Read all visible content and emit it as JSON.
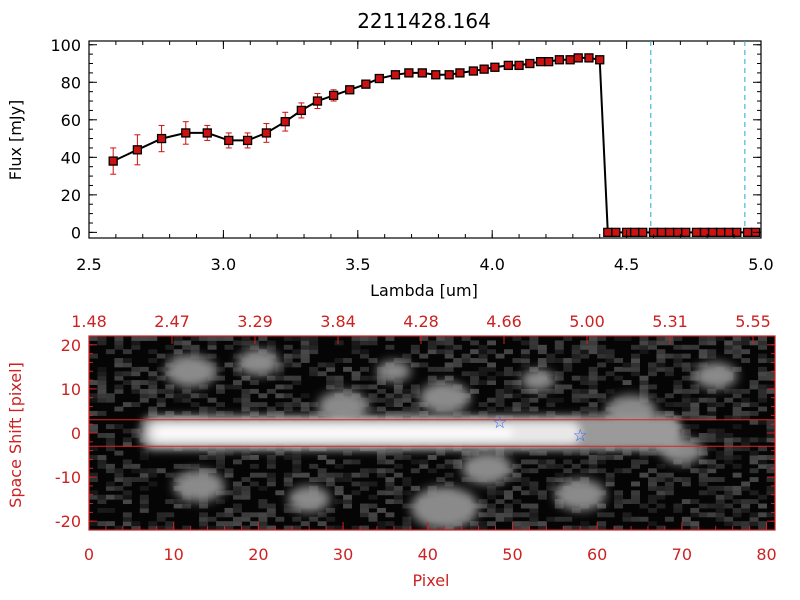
{
  "chart_data": [
    {
      "type": "line",
      "title": "2211428.164",
      "xlabel": "Lambda [um]",
      "ylabel": "Flux [mJy]",
      "xlim": [
        2.5,
        5.0
      ],
      "ylim": [
        -3,
        102
      ],
      "xticks": [
        "2.5",
        "3.0",
        "3.5",
        "4.0",
        "4.5",
        "5.0"
      ],
      "yticks": [
        "0",
        "20",
        "40",
        "60",
        "80",
        "100"
      ],
      "series": [
        {
          "name": "flux",
          "color": "#000000",
          "marker_color": "#cc1111",
          "errorbar_color": "#cc1111",
          "x": [
            2.59,
            2.68,
            2.77,
            2.86,
            2.94,
            3.02,
            3.09,
            3.16,
            3.23,
            3.29,
            3.35,
            3.41,
            3.47,
            3.53,
            3.58,
            3.64,
            3.69,
            3.74,
            3.79,
            3.84,
            3.88,
            3.93,
            3.97,
            4.01,
            4.06,
            4.1,
            4.14,
            4.18,
            4.21,
            4.25,
            4.29,
            4.32,
            4.36,
            4.4,
            4.43,
            4.46,
            4.5,
            4.53,
            4.56,
            4.6,
            4.63,
            4.66,
            4.69,
            4.72,
            4.76,
            4.79,
            4.82,
            4.85,
            4.88,
            4.91,
            4.95,
            4.98
          ],
          "y": [
            38,
            44,
            50,
            53,
            53,
            49,
            49,
            53,
            59,
            65,
            70,
            73,
            76,
            79,
            82,
            84,
            85,
            85,
            84,
            84,
            85,
            86,
            87,
            88,
            89,
            89,
            90,
            91,
            91,
            92,
            92,
            93,
            93,
            92,
            0,
            0,
            0,
            0,
            0,
            0,
            0,
            0,
            0,
            0,
            0,
            0,
            0,
            0,
            0,
            0,
            0,
            0
          ],
          "yerr": [
            7,
            8,
            7,
            6,
            4,
            4,
            4,
            5,
            5,
            4,
            4,
            3,
            2,
            2,
            2,
            2,
            2,
            2,
            2,
            2,
            2,
            2,
            2,
            2,
            2,
            2,
            2,
            2,
            2,
            2,
            2,
            2,
            2,
            2,
            0,
            0,
            0,
            0,
            0,
            0,
            0,
            0,
            0,
            0,
            0,
            0,
            0,
            0,
            0,
            0,
            0,
            0
          ]
        }
      ],
      "vlines": [
        {
          "x": 4.59,
          "color": "#22aacc",
          "style": "dashed"
        },
        {
          "x": 4.94,
          "color": "#22aacc",
          "style": "dashed"
        }
      ]
    },
    {
      "type": "heatmap",
      "xlabel": "Pixel",
      "ylabel": "Space Shift [pixel]",
      "xlim": [
        0,
        81
      ],
      "ylim": [
        -22,
        22
      ],
      "xticks": [
        "0",
        "10",
        "20",
        "30",
        "40",
        "50",
        "60",
        "70",
        "80"
      ],
      "yticks": [
        "-20",
        "-10",
        "0",
        "10",
        "20"
      ],
      "top_ticks": [
        "1.48",
        "2.47",
        "3.29",
        "3.84",
        "4.28",
        "4.66",
        "5.00",
        "5.31",
        "5.55"
      ],
      "axis_color": "#cc2222",
      "extraction_band": [
        -3,
        3
      ],
      "band_color": "#dd2222",
      "trace": {
        "x_start": 6,
        "x_end": 70,
        "center": 0,
        "width": 5
      },
      "blobs": [
        {
          "x": 12,
          "y": 14,
          "r": 3
        },
        {
          "x": 20,
          "y": 16,
          "r": 2.5
        },
        {
          "x": 30,
          "y": 6,
          "r": 3
        },
        {
          "x": 42,
          "y": 8,
          "r": 3
        },
        {
          "x": 47,
          "y": -8,
          "r": 3
        },
        {
          "x": 42,
          "y": -17,
          "r": 4
        },
        {
          "x": 13,
          "y": -12,
          "r": 3
        },
        {
          "x": 26,
          "y": -15,
          "r": 2.5
        },
        {
          "x": 64,
          "y": 5,
          "r": 3
        },
        {
          "x": 74,
          "y": 13,
          "r": 2.5
        },
        {
          "x": 58,
          "y": -14,
          "r": 3
        },
        {
          "x": 70,
          "y": -4,
          "r": 2.5
        },
        {
          "x": 36,
          "y": 14,
          "r": 2
        },
        {
          "x": 53,
          "y": 12,
          "r": 2
        }
      ],
      "markers": [
        {
          "x": 48.5,
          "y": 2.5,
          "symbol": "☆",
          "color": "#3366ee"
        },
        {
          "x": 58,
          "y": -0.5,
          "symbol": "☆",
          "color": "#3366ee"
        }
      ]
    }
  ]
}
